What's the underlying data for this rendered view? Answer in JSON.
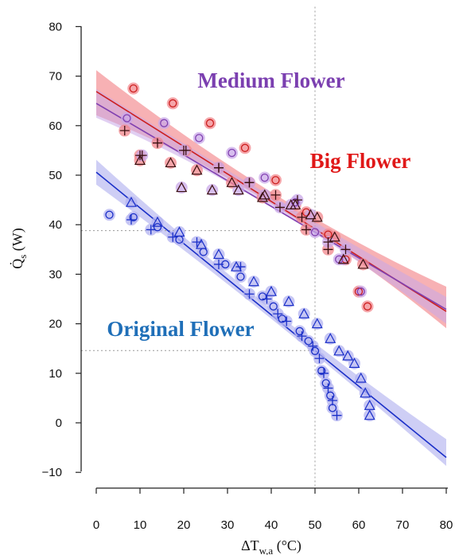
{
  "chart_data": {
    "type": "scatter",
    "title": "",
    "xlabel": "ΔT_w,a (°C)",
    "ylabel": "Q̇_s (W)",
    "xlim": [
      -2,
      82
    ],
    "ylim": [
      -12,
      84
    ],
    "xticks": [
      0,
      10,
      20,
      30,
      40,
      50,
      60,
      70,
      80
    ],
    "yticks": [
      -10,
      0,
      10,
      20,
      30,
      40,
      50,
      60,
      70,
      80
    ],
    "grid": false,
    "legend": "none",
    "annotations": [
      {
        "text": "Medium Flower",
        "color": "#7b3fb0"
      },
      {
        "text": "Big Flower",
        "color": "#e01818"
      },
      {
        "text": "Original Flower",
        "color": "#1f6fb8"
      }
    ],
    "reference_lines": {
      "x": 50,
      "y": [
        38.8,
        14.6
      ]
    },
    "series": [
      {
        "color": "#cc1f1f",
        "band_color": "#f2878c",
        "fit": {
          "intercept": 66.9,
          "slope": -0.555
        },
        "band": [
          [
            0,
            62.1,
            71.2
          ],
          [
            45,
            41.5,
            43.9
          ],
          [
            80,
            19.1,
            27.5
          ]
        ],
        "markers": {
          "circle": [
            [
              8.5,
              67.5
            ],
            [
              17.5,
              64.5
            ],
            [
              26,
              60.5
            ],
            [
              34,
              55.5
            ],
            [
              41,
              49
            ],
            [
              48,
              42.5
            ],
            [
              53,
              38
            ],
            [
              57,
              33
            ],
            [
              60,
              26.5
            ],
            [
              62,
              23.5
            ]
          ],
          "plus": [
            [
              6.5,
              59
            ],
            [
              10,
              54
            ],
            [
              14,
              56.5
            ],
            [
              20.5,
              55
            ],
            [
              28,
              51.5
            ],
            [
              35,
              48.5
            ],
            [
              41,
              46
            ],
            [
              47,
              41.5
            ],
            [
              48,
              39
            ],
            [
              53,
              35
            ]
          ],
          "triangle": [
            [
              10,
              53
            ],
            [
              17,
              52.5
            ],
            [
              23,
              51
            ],
            [
              31,
              48.5
            ],
            [
              38,
              45.5
            ],
            [
              45.5,
              44
            ],
            [
              50.5,
              41.5
            ],
            [
              54.5,
              37.5
            ],
            [
              61,
              32
            ]
          ]
        }
      },
      {
        "color": "#8040b0",
        "band_color": "#c9a8e8",
        "fit": {
          "intercept": 64.5,
          "slope": -0.52
        },
        "band": [
          [
            0,
            61.6,
            67.4
          ],
          [
            45,
            40.9,
            43.1
          ],
          [
            80,
            20.0,
            25.4
          ]
        ],
        "markers": {
          "circle": [
            [
              7,
              61.5
            ],
            [
              15.5,
              60.5
            ],
            [
              23.5,
              57.5
            ],
            [
              31,
              54.5
            ],
            [
              38.5,
              49.5
            ],
            [
              45.5,
              44.5
            ],
            [
              50,
              38.5
            ],
            [
              55.5,
              33
            ],
            [
              60.5,
              26.5
            ]
          ],
          "plus": [
            [
              10.5,
              54
            ],
            [
              20,
              55
            ],
            [
              28,
              51.5
            ],
            [
              35,
              48.5
            ],
            [
              42,
              43.5
            ],
            [
              46,
              45
            ],
            [
              53,
              36.5
            ],
            [
              57,
              35
            ]
          ],
          "triangle": [
            [
              19.5,
              47.5
            ],
            [
              26.5,
              47
            ],
            [
              32.5,
              47
            ],
            [
              38.5,
              46
            ],
            [
              44.5,
              44
            ],
            [
              49,
              42
            ],
            [
              56.5,
              33
            ]
          ]
        }
      },
      {
        "color": "#1a2fc8",
        "band_color": "#b3b3f0",
        "fit": {
          "intercept": 50.6,
          "slope": -0.72
        },
        "band": [
          [
            0,
            48.1,
            53.1
          ],
          [
            40,
            21.0,
            23.0
          ],
          [
            80,
            -8.7,
            -3.3
          ]
        ],
        "markers": {
          "circle": [
            [
              3,
              42
            ],
            [
              8.5,
              41.5
            ],
            [
              14,
              39.5
            ],
            [
              19,
              37
            ],
            [
              24.5,
              34.5
            ],
            [
              29.5,
              32
            ],
            [
              33,
              29.5
            ],
            [
              38,
              25.5
            ],
            [
              40.5,
              23.5
            ],
            [
              42.5,
              21
            ],
            [
              46.5,
              18.5
            ],
            [
              48.5,
              16.5
            ],
            [
              50,
              14.5
            ],
            [
              51.5,
              10.5
            ],
            [
              52.5,
              8
            ],
            [
              53.5,
              5.5
            ],
            [
              54,
              3
            ]
          ],
          "plus": [
            [
              8,
              41
            ],
            [
              12.5,
              39
            ],
            [
              17.5,
              37.5
            ],
            [
              23,
              36.5
            ],
            [
              28,
              32
            ],
            [
              33,
              31.5
            ],
            [
              35,
              26
            ],
            [
              39,
              25
            ],
            [
              41.5,
              22
            ],
            [
              43.5,
              20.5
            ],
            [
              47,
              17.5
            ],
            [
              49.5,
              15.5
            ],
            [
              51,
              13
            ],
            [
              52,
              10
            ],
            [
              53,
              7
            ],
            [
              54,
              4.5
            ],
            [
              55,
              1.5
            ]
          ],
          "triangle": [
            [
              8,
              44.5
            ],
            [
              14,
              40.5
            ],
            [
              19,
              38.5
            ],
            [
              24,
              36
            ],
            [
              28,
              34
            ],
            [
              32,
              31.5
            ],
            [
              36,
              28.5
            ],
            [
              40,
              26.5
            ],
            [
              44,
              24.5
            ],
            [
              47.5,
              22
            ],
            [
              50.5,
              20
            ],
            [
              53.5,
              17
            ],
            [
              55.5,
              14.5
            ],
            [
              57.5,
              13.5
            ],
            [
              59,
              12
            ],
            [
              60.5,
              9
            ],
            [
              61.5,
              6
            ],
            [
              62.5,
              3.5
            ],
            [
              62.5,
              1.5
            ]
          ]
        }
      }
    ]
  }
}
